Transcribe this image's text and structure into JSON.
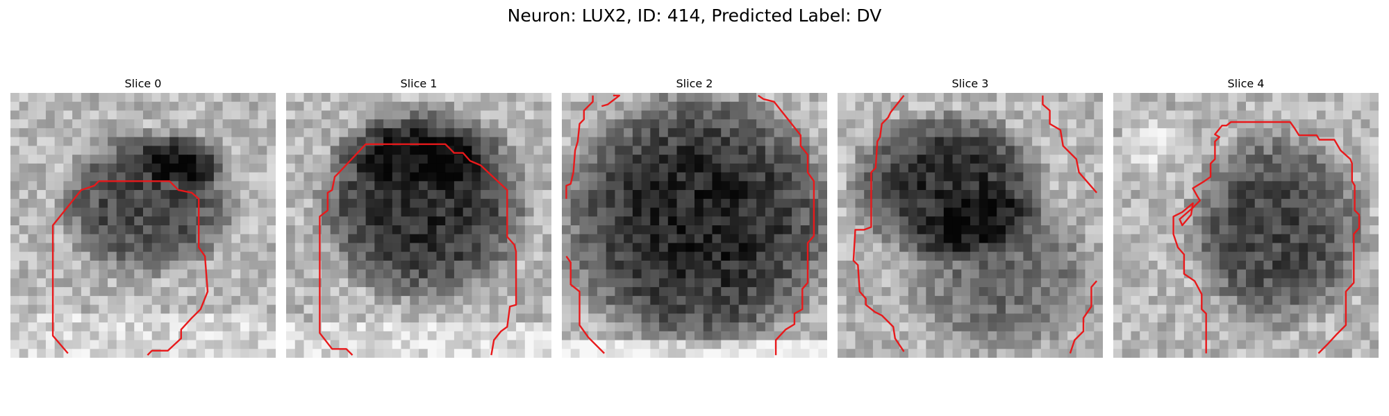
{
  "figure": {
    "title": "Neuron: LUX2, ID: 414, Predicted Label: DV"
  },
  "colors": {
    "contour": "#e8191b",
    "background": "#ffffff"
  },
  "panels": [
    {
      "title": "Slice 0"
    },
    {
      "title": "Slice 1"
    },
    {
      "title": "Slice 2"
    },
    {
      "title": "Slice 3"
    },
    {
      "title": "Slice 4"
    }
  ]
}
